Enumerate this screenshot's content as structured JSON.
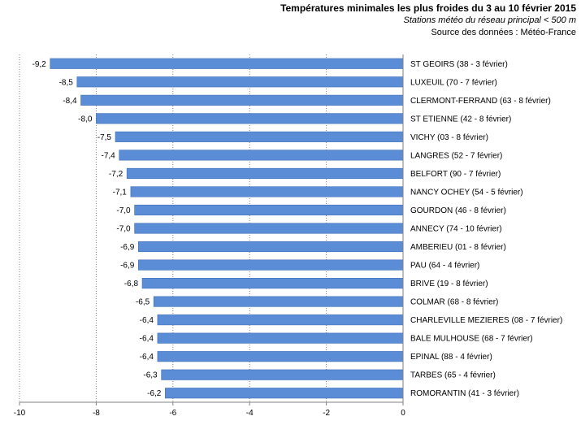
{
  "chart_data": {
    "type": "bar",
    "orientation": "horizontal",
    "title": "Températures minimales les plus froides du 3 au 10 février 2015",
    "subtitle": "Stations météo du réseau principal < 500 m",
    "source": "Source des données : Météo-France",
    "categories": [
      "ST GEOIRS (38 - 3 février)",
      "LUXEUIL (70 - 7 février)",
      "CLERMONT-FERRAND (63 - 8 février)",
      "ST ETIENNE (42 - 8 février)",
      "VICHY (03 - 8 février)",
      "LANGRES (52 - 7 février)",
      "BELFORT (90 - 7 février)",
      "NANCY OCHEY (54 - 5 février)",
      "GOURDON (46 - 8 février)",
      "ANNECY (74 - 10 février)",
      "AMBERIEU (01 - 8 février)",
      "PAU (64 - 4 février)",
      "BRIVE (19 - 8 février)",
      "COLMAR (68 - 8 février)",
      "CHARLEVILLE MEZIERES (08 - 7 février)",
      "BALE MULHOUSE (68 - 7 février)",
      "EPINAL (88 - 4 février)",
      "TARBES (65 - 4 février)",
      "ROMORANTIN (41 - 3 février)"
    ],
    "values": [
      -9.2,
      -8.5,
      -8.4,
      -8.0,
      -7.5,
      -7.4,
      -7.2,
      -7.1,
      -7.0,
      -7.0,
      -6.9,
      -6.9,
      -6.8,
      -6.5,
      -6.4,
      -6.4,
      -6.4,
      -6.3,
      -6.2
    ],
    "value_labels": [
      "-9,2",
      "-8,5",
      "-8,4",
      "-8,0",
      "-7,5",
      "-7,4",
      "-7,2",
      "-7,1",
      "-7,0",
      "-7,0",
      "-6,9",
      "-6,9",
      "-6,8",
      "-6,5",
      "-6,4",
      "-6,4",
      "-6,4",
      "-6,3",
      "-6,2"
    ],
    "xlim": [
      -10,
      0
    ],
    "xticks": [
      -10,
      -8,
      -6,
      -4,
      -2,
      0
    ],
    "xtick_labels": [
      "-10",
      "-8",
      "-6",
      "-4",
      "-2",
      "0"
    ],
    "grid": "vertical",
    "bar_color": "#5b8cd6",
    "bar_border_color": "#3f6fb8"
  }
}
